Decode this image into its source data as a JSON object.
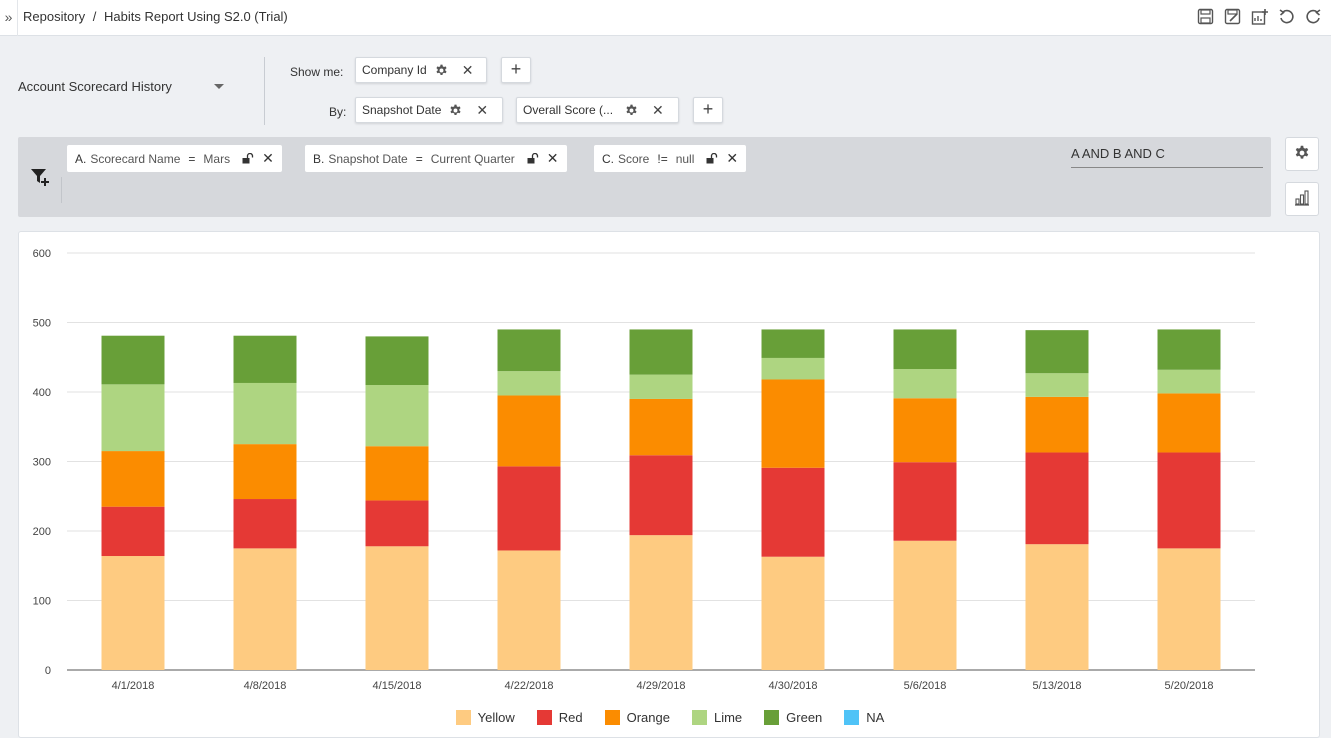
{
  "breadcrumb": {
    "root": "Repository",
    "separator": "/",
    "current": "Habits Report Using S2.0 (Trial)"
  },
  "toolbar": {
    "icons": [
      "save-icon",
      "save-as-icon",
      "add-to-dashboard-icon",
      "undo-icon",
      "refresh-icon"
    ]
  },
  "report": {
    "name": "Account Scorecard History"
  },
  "show_me": {
    "label": "Show me:",
    "fields": [
      "Company Id"
    ]
  },
  "by": {
    "label": "By:",
    "fields": [
      "Snapshot Date",
      "Overall Score (..."
    ]
  },
  "filters": [
    {
      "id": "A.",
      "field": "Scorecard Name",
      "operator": "=",
      "value": "Mars"
    },
    {
      "id": "B.",
      "field": "Snapshot Date",
      "operator": "=",
      "value": "Current Quarter"
    },
    {
      "id": "C.",
      "field": "Score",
      "operator": "!=",
      "value": "null"
    }
  ],
  "filter_logic": "A AND B AND C",
  "chart_data": {
    "type": "bar",
    "stacked": true,
    "categories": [
      "4/1/2018",
      "4/8/2018",
      "4/15/2018",
      "4/22/2018",
      "4/29/2018",
      "4/30/2018",
      "5/6/2018",
      "5/13/2018",
      "5/20/2018"
    ],
    "series": [
      {
        "name": "Yellow",
        "color": "#fecb81",
        "values": [
          164,
          175,
          178,
          172,
          194,
          163,
          186,
          181,
          175
        ]
      },
      {
        "name": "Red",
        "color": "#e53935",
        "values": [
          71,
          71,
          66,
          121,
          115,
          128,
          113,
          132,
          138
        ]
      },
      {
        "name": "Orange",
        "color": "#fb8c00",
        "values": [
          80,
          79,
          78,
          102,
          81,
          127,
          92,
          80,
          85
        ]
      },
      {
        "name": "Lime",
        "color": "#aed581",
        "values": [
          96,
          88,
          88,
          35,
          35,
          31,
          42,
          34,
          34
        ]
      },
      {
        "name": "Green",
        "color": "#689f38",
        "values": [
          70,
          68,
          70,
          60,
          65,
          41,
          57,
          62,
          58
        ]
      },
      {
        "name": "NA",
        "color": "#4fc3f7",
        "values": [
          0,
          0,
          0,
          0,
          0,
          0,
          0,
          0,
          0
        ]
      }
    ],
    "ylim": [
      0,
      600
    ],
    "yticks": [
      0,
      100,
      200,
      300,
      400,
      500,
      600
    ],
    "grid": true,
    "legend": "bottom"
  }
}
